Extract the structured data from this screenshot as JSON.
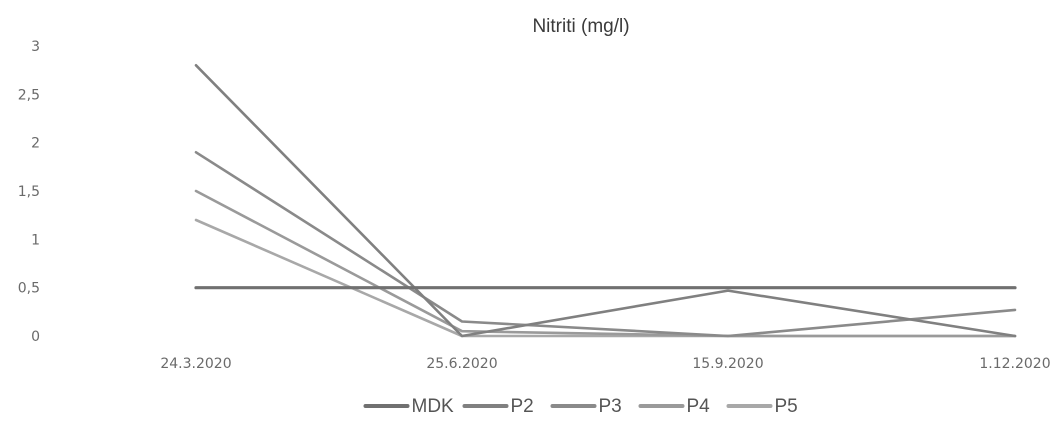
{
  "chart_data": {
    "type": "line",
    "title": "Nitriti (mg/l)",
    "xlabel": "",
    "ylabel": "",
    "categories": [
      "24.3.2020",
      "25.6.2020",
      "15.9.2020",
      "1.12.2020"
    ],
    "y_ticks": [
      "3",
      "2,5",
      "2",
      "1,5",
      "1",
      "0,5",
      "0"
    ],
    "ylim": [
      0,
      3
    ],
    "grid": false,
    "legend_position": "bottom",
    "series": [
      {
        "name": "MDK",
        "values": [
          0.5,
          0.5,
          0.5,
          0.5
        ],
        "color": "#707070"
      },
      {
        "name": "P2",
        "values": [
          2.8,
          0.0,
          0.47,
          0.0
        ],
        "color": "#808080"
      },
      {
        "name": "P3",
        "values": [
          1.9,
          0.15,
          0.0,
          0.27
        ],
        "color": "#8a8a8a"
      },
      {
        "name": "P4",
        "values": [
          1.5,
          0.05,
          0.0,
          0.0
        ],
        "color": "#9a9a9a"
      },
      {
        "name": "P5",
        "values": [
          1.2,
          0.0,
          0.0,
          0.0
        ],
        "color": "#a8a8a8"
      }
    ]
  }
}
